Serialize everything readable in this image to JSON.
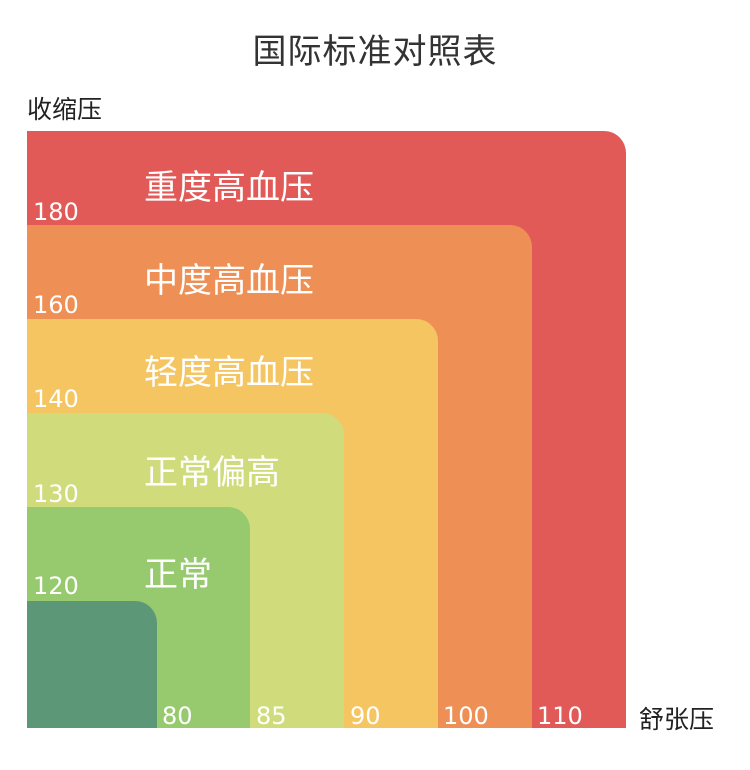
{
  "title": "国际标准对照表",
  "y_axis_label": "收缩压",
  "x_axis_label": "舒张压",
  "bands": [
    {
      "label": "重度高血压",
      "systolic": 180,
      "diastolic": 110,
      "color": "#e25a58"
    },
    {
      "label": "中度高血压",
      "systolic": 160,
      "diastolic": 100,
      "color": "#ee9055"
    },
    {
      "label": "轻度高血压",
      "systolic": 140,
      "diastolic": 90,
      "color": "#f5c562"
    },
    {
      "label": "正常偏高",
      "systolic": 130,
      "diastolic": 85,
      "color": "#d0dc7b"
    },
    {
      "label": "正常",
      "systolic": 120,
      "diastolic": 80,
      "color": "#97ca6e"
    },
    {
      "label": "",
      "systolic": null,
      "diastolic": null,
      "color": "#5c9877"
    }
  ],
  "systolic_ticks": [
    "180",
    "160",
    "140",
    "130",
    "120"
  ],
  "diastolic_ticks": [
    "80",
    "85",
    "90",
    "100",
    "110"
  ]
}
